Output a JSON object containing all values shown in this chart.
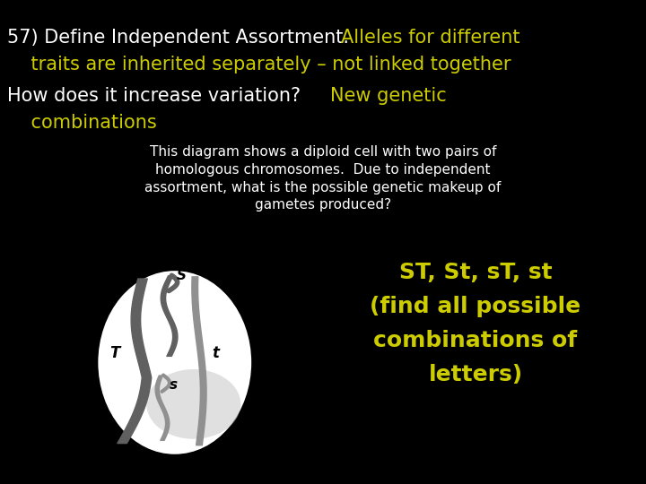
{
  "bg_color": "#000000",
  "white_text": "#ffffff",
  "yellow_text": "#cccc00",
  "line1_white": "57) Define Independent Assortment.",
  "line1_yellow": "Alleles for different",
  "line2_yellow": "    traits are inherited separately – not linked together",
  "line3_white": "How does it increase variation?",
  "line3_yellow": "New genetic",
  "line4_yellow": "    combinations",
  "desc_text": "This diagram shows a diploid cell with two pairs of\nhomologous chromosomes.  Due to independent\nassortment, what is the possible genetic makeup of\ngametes produced?",
  "answer_line1": "ST, St, sT, st",
  "answer_line2": "(find all possible",
  "answer_line3": "combinations of",
  "answer_line4": "letters)",
  "title_fontsize": 15,
  "body_fontsize": 11,
  "answer_fontsize": 18
}
